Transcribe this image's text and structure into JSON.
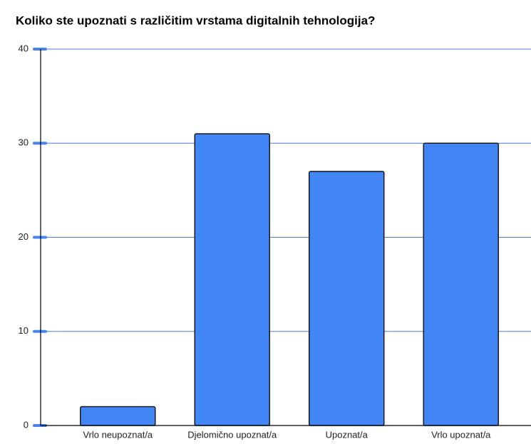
{
  "chart_data": {
    "type": "bar",
    "title": "Koliko ste upoznati s različitim vrstama digitalnih tehnologija?",
    "categories": [
      "Vrlo neupoznat/a",
      "Djelomično upoznat/a",
      "Upoznat/a",
      "Vrlo upoznat/a"
    ],
    "values": [
      2,
      31,
      27,
      30
    ],
    "color": "#4285f4",
    "ylim": [
      0,
      40
    ],
    "yticks": [
      0,
      10,
      20,
      30,
      40
    ],
    "grid": true
  }
}
